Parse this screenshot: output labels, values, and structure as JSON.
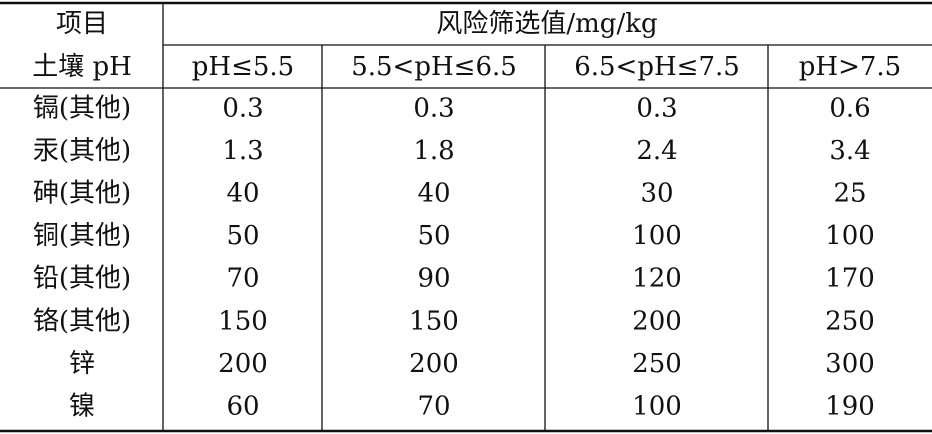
{
  "table": {
    "header": {
      "item": "项目",
      "group": "风险筛选值/mg/kg"
    },
    "ph_row": {
      "label": "土壤 pH",
      "ranges": [
        "pH≤5.5",
        "5.5<pH≤6.5",
        "6.5<pH≤7.5",
        "pH>7.5"
      ]
    },
    "rows": [
      [
        "镉(其他)",
        0.3,
        0.3,
        0.3,
        0.6
      ],
      [
        "汞(其他)",
        1.3,
        1.8,
        2.4,
        3.4
      ],
      [
        "砷(其他)",
        40,
        40,
        30,
        25
      ],
      [
        "铜(其他)",
        50,
        50,
        100,
        100
      ],
      [
        "铅(其他)",
        70,
        90,
        120,
        170
      ],
      [
        "铬(其他)",
        150,
        150,
        200,
        250
      ],
      [
        "锌",
        200,
        200,
        250,
        300
      ],
      [
        "镍",
        60,
        70,
        100,
        190
      ]
    ]
  }
}
